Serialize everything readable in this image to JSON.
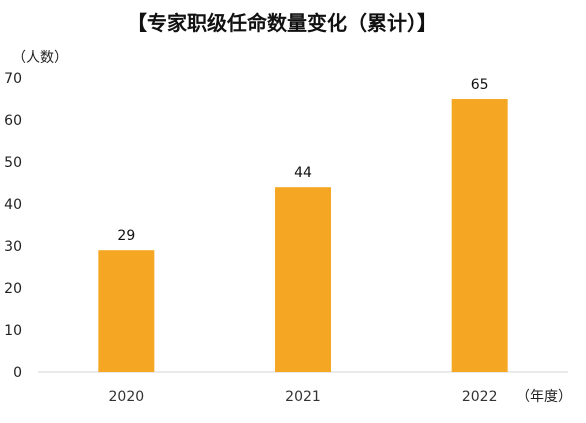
{
  "chart_data": {
    "type": "bar",
    "title": "【专家职级任命数量变化（累计）】",
    "ylabel": "（人数）",
    "xlabel": "（年度）",
    "categories": [
      "2020",
      "2021",
      "2022"
    ],
    "values": [
      29,
      44,
      65
    ],
    "data_labels": [
      "29",
      "44",
      "65"
    ],
    "ylim": [
      0,
      70
    ],
    "yticks": [
      0,
      10,
      20,
      30,
      40,
      50,
      60,
      70
    ],
    "grid": false,
    "legend": "none",
    "bar_color": "#F5A623"
  }
}
